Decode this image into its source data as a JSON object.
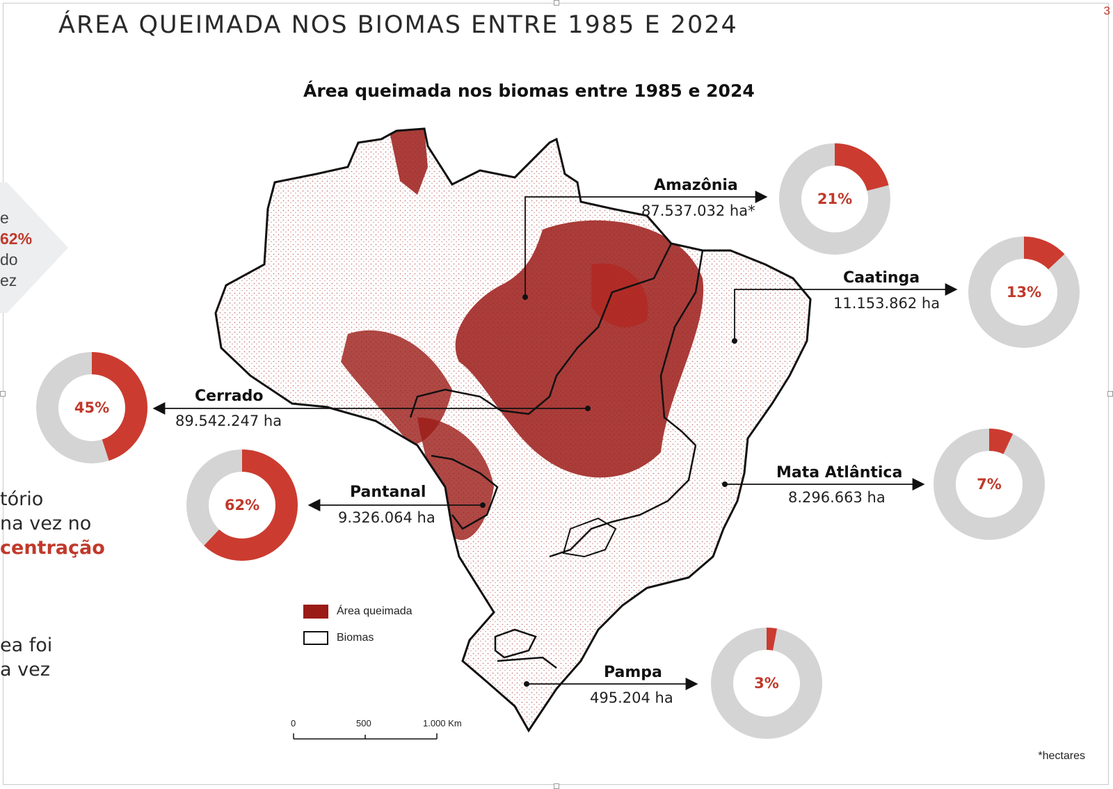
{
  "page": {
    "title": "ÁREA QUEIMADA NOS BIOMAS ENTRE 1985 E 2024",
    "page_number": "3",
    "footnote": "*hectares"
  },
  "map": {
    "title": "Área queimada nos biomas entre 1985 e 2024",
    "burn_color": "#9b1b17",
    "donut_accent": "#cc3b2f",
    "donut_track": "#d4d4d4",
    "legend": [
      {
        "label": "Área queimada"
      },
      {
        "label": "Biomas"
      }
    ],
    "scale": {
      "ticks": [
        "0",
        "500",
        "1.000 Km"
      ]
    }
  },
  "biomes": [
    {
      "name": "Amazônia",
      "area": "87.537.032 ha*",
      "percent": "21%",
      "fraction": 0.21
    },
    {
      "name": "Caatinga",
      "area": "11.153.862 ha",
      "percent": "13%",
      "fraction": 0.13
    },
    {
      "name": "Cerrado",
      "area": "89.542.247 ha",
      "percent": "45%",
      "fraction": 0.45
    },
    {
      "name": "Pantanal",
      "area": "9.326.064 ha",
      "percent": "62%",
      "fraction": 0.62
    },
    {
      "name": "Mata Atlântica",
      "area": "8.296.663 ha",
      "percent": "7%",
      "fraction": 0.07
    },
    {
      "name": "Pampa",
      "area": "495.204 ha",
      "percent": "3%",
      "fraction": 0.03
    }
  ],
  "side_text": {
    "block1": [
      "e",
      "62%",
      "do",
      "ez"
    ],
    "block2": [
      "tório",
      "na vez no",
      "centração"
    ],
    "block3": [
      "ea foi",
      "a vez"
    ]
  }
}
